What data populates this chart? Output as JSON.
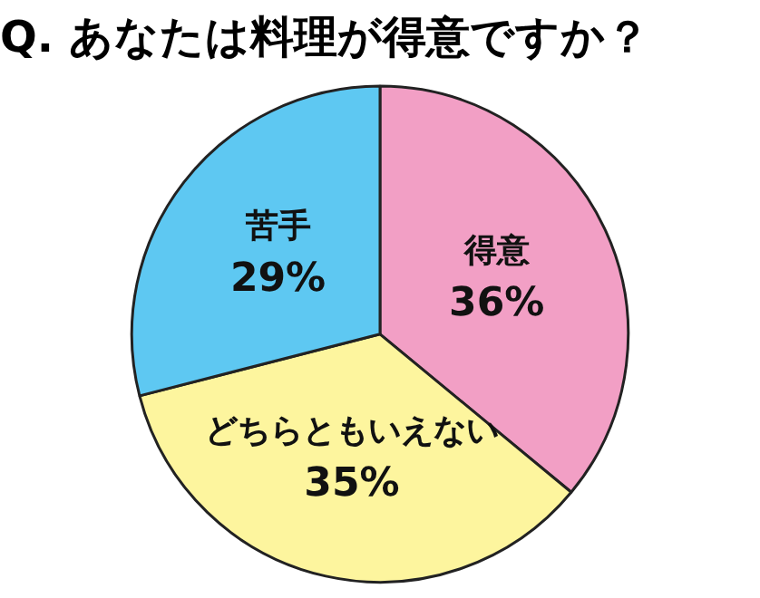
{
  "chart_data": {
    "type": "pie",
    "title": "Q. あなたは料理が得意ですか？",
    "categories": [
      "得意",
      "どちらともいえない",
      "苦手"
    ],
    "values": [
      36,
      35,
      29
    ],
    "value_labels": [
      "36%",
      "35%",
      "29%"
    ],
    "colors": [
      "#f29fc5",
      "#fdf59e",
      "#5ec8f2"
    ]
  }
}
